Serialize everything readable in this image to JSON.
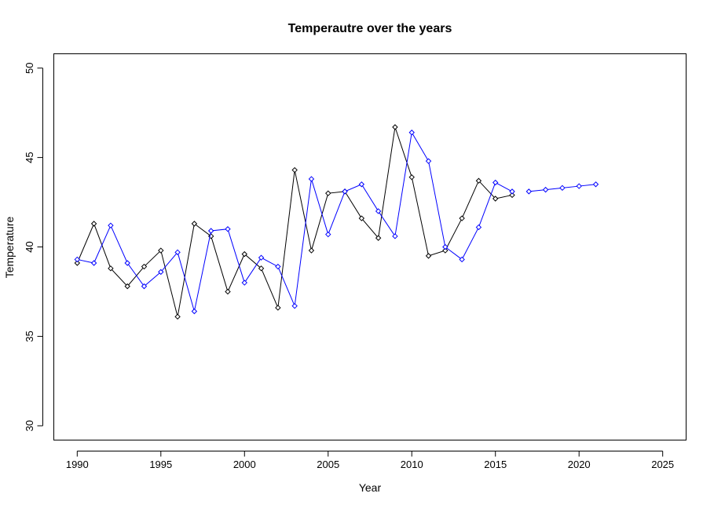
{
  "chart_data": {
    "type": "line",
    "title": "Temperautre over the years",
    "xlabel": "Year",
    "ylabel": "Temperature",
    "xlim": [
      1988.6,
      2026.4
    ],
    "ylim": [
      29.2,
      50.8
    ],
    "xticks": [
      1990,
      1995,
      2000,
      2005,
      2010,
      2015,
      2020,
      2025
    ],
    "yticks": [
      30,
      35,
      40,
      45,
      50
    ],
    "grid": false,
    "legend": "none",
    "series": [
      {
        "color": "#000000",
        "marker": "diamond-open",
        "x": [
          1990,
          1991,
          1992,
          1993,
          1994,
          1995,
          1996,
          1997,
          1998,
          1999,
          2000,
          2001,
          2002,
          2003,
          2004,
          2005,
          2006,
          2007,
          2008,
          2009,
          2010,
          2011,
          2012,
          2013,
          2014,
          2015,
          2016
        ],
        "y": [
          39.1,
          41.3,
          38.8,
          37.8,
          38.9,
          39.8,
          36.1,
          41.3,
          40.6,
          37.5,
          39.6,
          38.8,
          36.6,
          44.3,
          39.8,
          43.0,
          43.1,
          41.6,
          40.5,
          46.7,
          43.9,
          39.5,
          39.8,
          41.6,
          43.7,
          42.7,
          42.9
        ]
      },
      {
        "color": "#0000ff",
        "marker": "diamond-open",
        "x": [
          1990,
          1991,
          1992,
          1993,
          1994,
          1995,
          1996,
          1997,
          1998,
          1999,
          2000,
          2001,
          2002,
          2003,
          2004,
          2005,
          2006,
          2007,
          2008,
          2009,
          2010,
          2011,
          2012,
          2013,
          2014,
          2015,
          2016
        ],
        "y": [
          39.3,
          39.1,
          41.2,
          39.1,
          37.8,
          38.6,
          39.7,
          36.4,
          40.9,
          41.0,
          38.0,
          39.4,
          38.9,
          36.7,
          43.8,
          40.7,
          43.1,
          43.5,
          42.0,
          40.6,
          46.4,
          44.8,
          40.0,
          39.3,
          41.1,
          43.6,
          43.1
        ]
      },
      {
        "color": "#0000ff",
        "marker": "diamond-open",
        "x": [
          2017,
          2018,
          2019,
          2020,
          2021
        ],
        "y": [
          43.1,
          43.2,
          43.3,
          43.4,
          43.5
        ]
      }
    ]
  }
}
